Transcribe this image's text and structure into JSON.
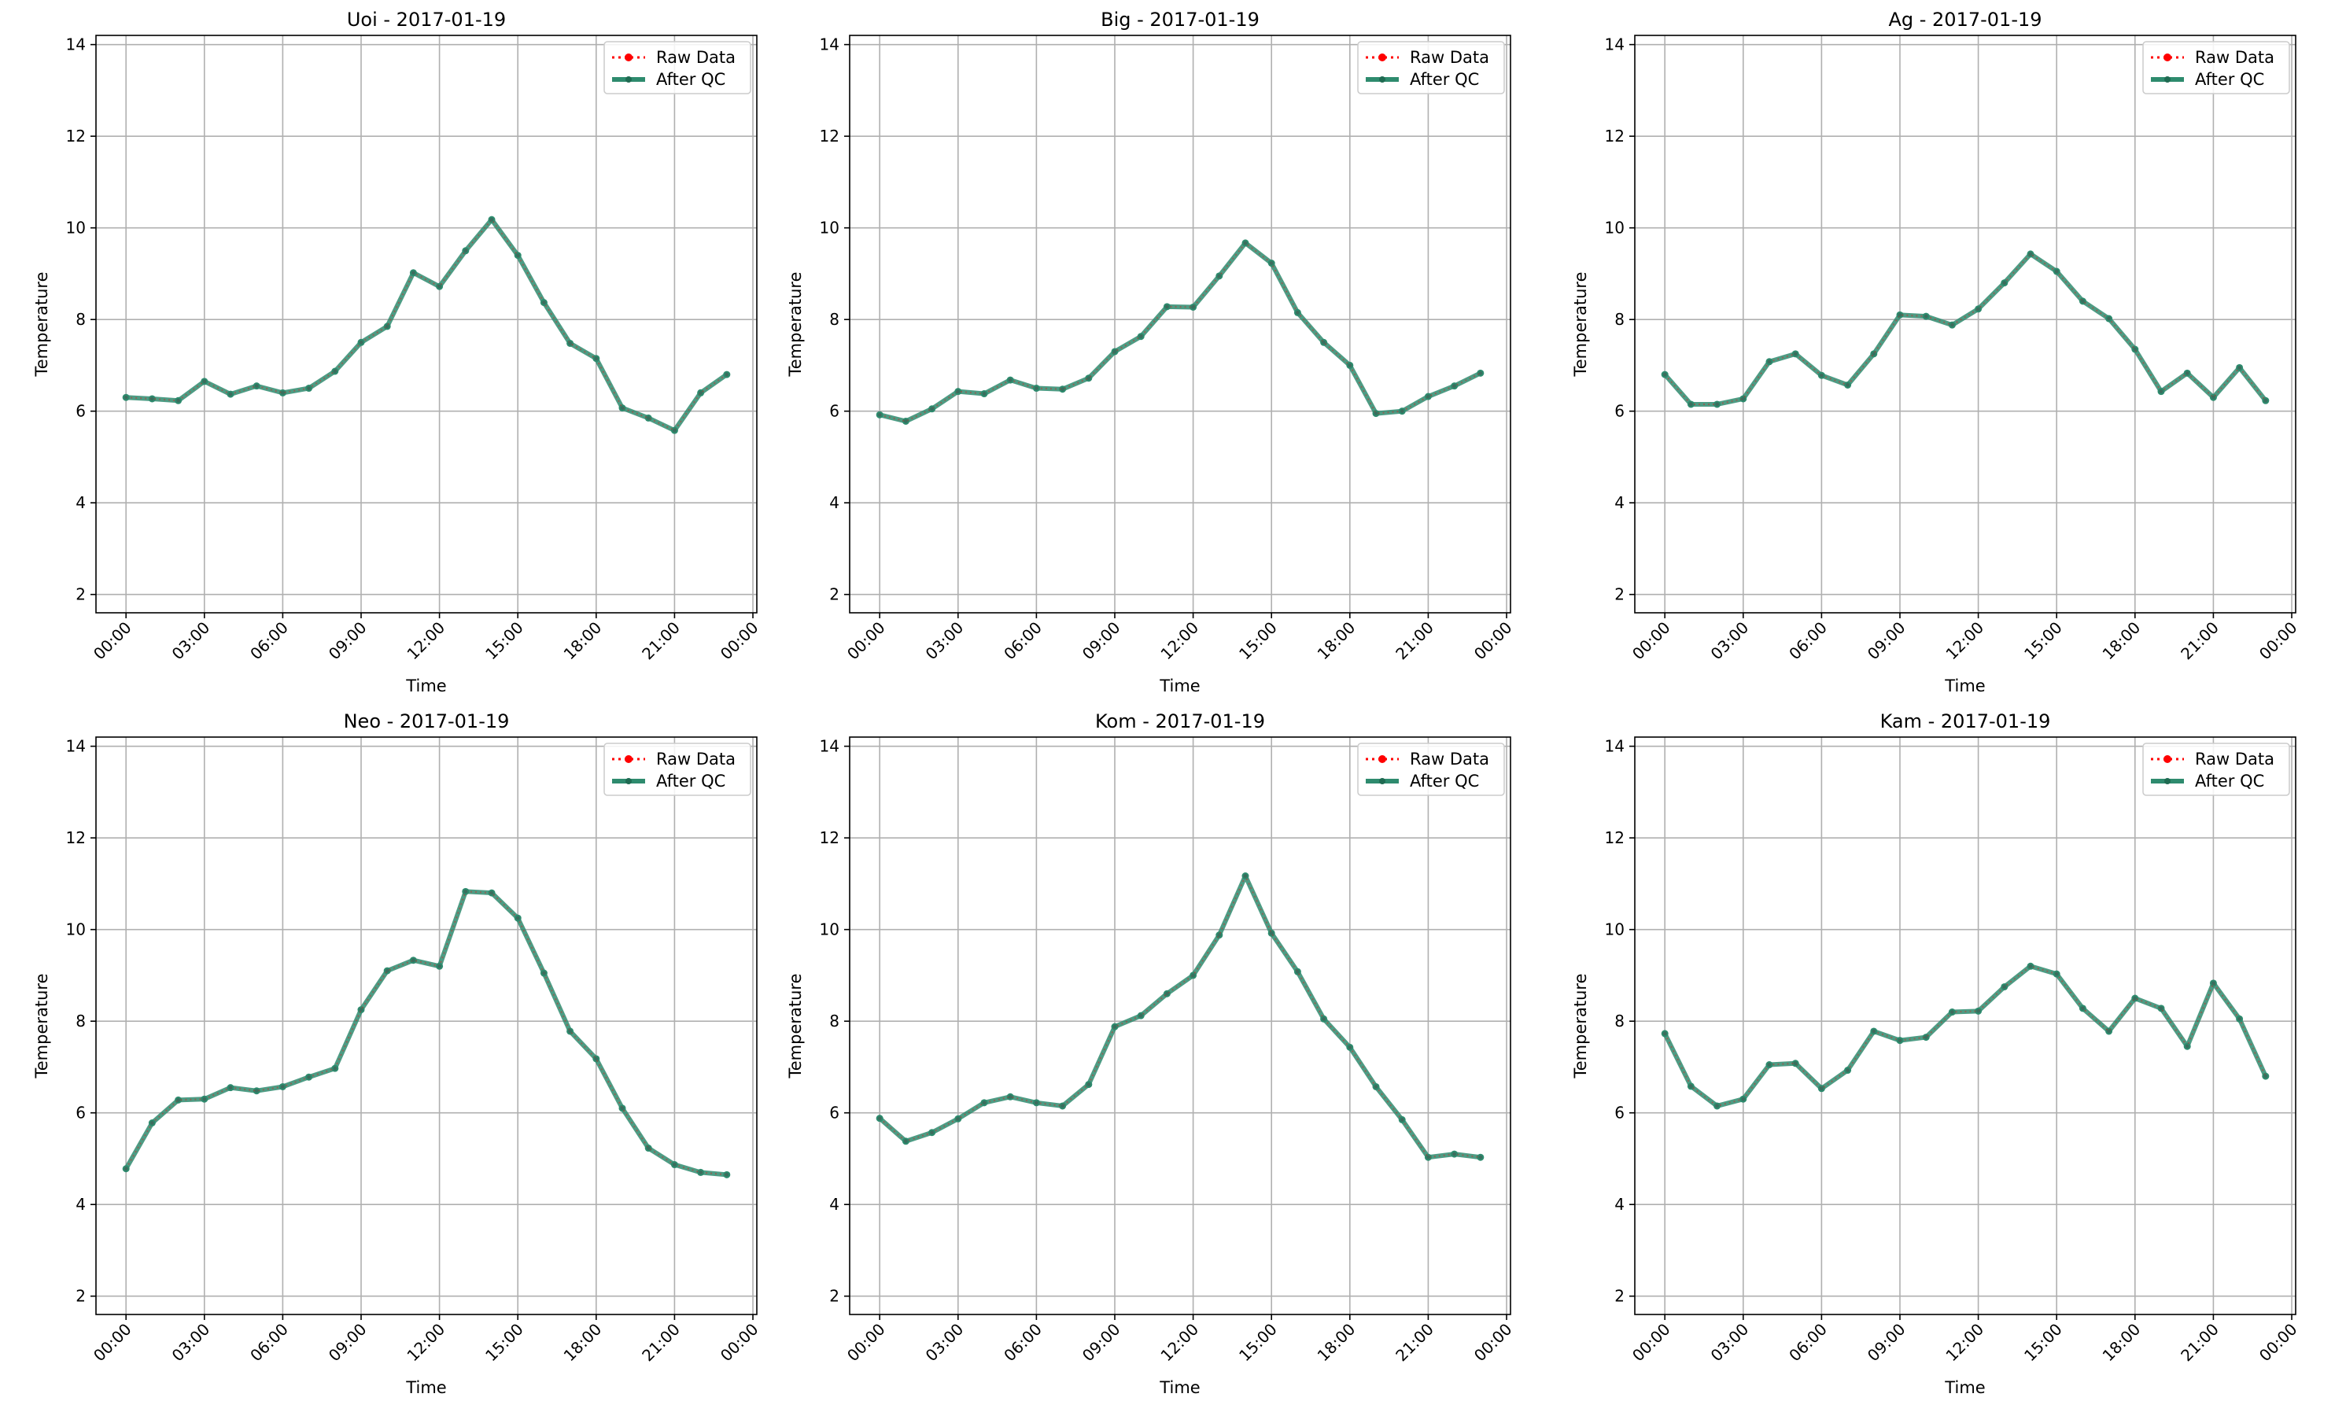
{
  "figure": {
    "background": "#ffffff"
  },
  "style": {
    "raw_color": "#ff0000",
    "qc_color": "#2e8b6e",
    "grid_color": "#b0b0b0"
  },
  "chart_data": [
    {
      "type": "line",
      "title": "Uoi - 2017-01-19",
      "xlabel": "Time",
      "ylabel": "Temperature",
      "x": [
        "00:00",
        "01:00",
        "02:00",
        "03:00",
        "04:00",
        "05:00",
        "06:00",
        "07:00",
        "08:00",
        "09:00",
        "10:00",
        "11:00",
        "12:00",
        "13:00",
        "14:00",
        "15:00",
        "16:00",
        "17:00",
        "18:00",
        "19:00",
        "20:00",
        "21:00",
        "22:00",
        "23:00"
      ],
      "xtick_labels": [
        "00:00",
        "03:00",
        "06:00",
        "09:00",
        "12:00",
        "15:00",
        "18:00",
        "21:00",
        "00:00"
      ],
      "ylim": [
        1.6,
        14.2
      ],
      "yticks": [
        2,
        4,
        6,
        8,
        10,
        12,
        14
      ],
      "grid": true,
      "legend": "top-right",
      "series": [
        {
          "name": "Raw Data",
          "values": [
            6.3,
            6.27,
            6.23,
            6.65,
            6.37,
            6.55,
            6.4,
            6.5,
            6.87,
            7.5,
            7.85,
            9.02,
            8.72,
            9.5,
            10.18,
            9.4,
            8.37,
            7.48,
            7.15,
            6.07,
            5.85,
            5.58,
            6.4,
            6.8
          ]
        },
        {
          "name": "After QC",
          "values": [
            6.3,
            6.27,
            6.23,
            6.65,
            6.37,
            6.55,
            6.4,
            6.5,
            6.87,
            7.5,
            7.85,
            9.02,
            8.72,
            9.5,
            10.18,
            9.4,
            8.37,
            7.48,
            7.15,
            6.07,
            5.85,
            5.58,
            6.4,
            6.8
          ]
        }
      ]
    },
    {
      "type": "line",
      "title": "Big - 2017-01-19",
      "xlabel": "Time",
      "ylabel": "Temperature",
      "x": [
        "00:00",
        "01:00",
        "02:00",
        "03:00",
        "04:00",
        "05:00",
        "06:00",
        "07:00",
        "08:00",
        "09:00",
        "10:00",
        "11:00",
        "12:00",
        "13:00",
        "14:00",
        "15:00",
        "16:00",
        "17:00",
        "18:00",
        "19:00",
        "20:00",
        "21:00",
        "22:00",
        "23:00"
      ],
      "xtick_labels": [
        "00:00",
        "03:00",
        "06:00",
        "09:00",
        "12:00",
        "15:00",
        "18:00",
        "21:00",
        "00:00"
      ],
      "ylim": [
        1.6,
        14.2
      ],
      "yticks": [
        2,
        4,
        6,
        8,
        10,
        12,
        14
      ],
      "grid": true,
      "legend": "top-right",
      "series": [
        {
          "name": "Raw Data",
          "values": [
            5.92,
            5.78,
            6.05,
            6.43,
            6.38,
            6.68,
            6.5,
            6.48,
            6.72,
            7.3,
            7.63,
            8.28,
            8.27,
            8.95,
            9.67,
            9.23,
            8.15,
            7.5,
            7.0,
            5.95,
            6.0,
            6.32,
            6.55,
            6.83
          ]
        },
        {
          "name": "After QC",
          "values": [
            5.92,
            5.78,
            6.05,
            6.43,
            6.38,
            6.68,
            6.5,
            6.48,
            6.72,
            7.3,
            7.63,
            8.28,
            8.27,
            8.95,
            9.67,
            9.23,
            8.15,
            7.5,
            7.0,
            5.95,
            6.0,
            6.32,
            6.55,
            6.83
          ]
        }
      ]
    },
    {
      "type": "line",
      "title": "Ag - 2017-01-19",
      "xlabel": "Time",
      "ylabel": "Temperature",
      "x": [
        "00:00",
        "01:00",
        "02:00",
        "03:00",
        "04:00",
        "05:00",
        "06:00",
        "07:00",
        "08:00",
        "09:00",
        "10:00",
        "11:00",
        "12:00",
        "13:00",
        "14:00",
        "15:00",
        "16:00",
        "17:00",
        "18:00",
        "19:00",
        "20:00",
        "21:00",
        "22:00",
        "23:00"
      ],
      "xtick_labels": [
        "00:00",
        "03:00",
        "06:00",
        "09:00",
        "12:00",
        "15:00",
        "18:00",
        "21:00",
        "00:00"
      ],
      "ylim": [
        1.6,
        14.2
      ],
      "yticks": [
        2,
        4,
        6,
        8,
        10,
        12,
        14
      ],
      "grid": true,
      "legend": "top-right",
      "series": [
        {
          "name": "Raw Data",
          "values": [
            6.8,
            6.15,
            6.15,
            6.27,
            7.08,
            7.25,
            6.78,
            6.57,
            7.25,
            8.1,
            8.07,
            7.88,
            8.23,
            8.8,
            9.43,
            9.05,
            8.4,
            8.02,
            7.35,
            6.43,
            6.83,
            6.3,
            6.95,
            6.23
          ]
        },
        {
          "name": "After QC",
          "values": [
            6.8,
            6.15,
            6.15,
            6.27,
            7.08,
            7.25,
            6.78,
            6.57,
            7.25,
            8.1,
            8.07,
            7.88,
            8.23,
            8.8,
            9.43,
            9.05,
            8.4,
            8.02,
            7.35,
            6.43,
            6.83,
            6.3,
            6.95,
            6.23
          ]
        }
      ]
    },
    {
      "type": "line",
      "title": "Neo - 2017-01-19",
      "xlabel": "Time",
      "ylabel": "Temperature",
      "x": [
        "00:00",
        "01:00",
        "02:00",
        "03:00",
        "04:00",
        "05:00",
        "06:00",
        "07:00",
        "08:00",
        "09:00",
        "10:00",
        "11:00",
        "12:00",
        "13:00",
        "14:00",
        "15:00",
        "16:00",
        "17:00",
        "18:00",
        "19:00",
        "20:00",
        "21:00",
        "22:00",
        "23:00"
      ],
      "xtick_labels": [
        "00:00",
        "03:00",
        "06:00",
        "09:00",
        "12:00",
        "15:00",
        "18:00",
        "21:00",
        "00:00"
      ],
      "ylim": [
        1.6,
        14.2
      ],
      "yticks": [
        2,
        4,
        6,
        8,
        10,
        12,
        14
      ],
      "grid": true,
      "legend": "top-right",
      "series": [
        {
          "name": "Raw Data",
          "values": [
            4.78,
            5.78,
            6.28,
            6.3,
            6.55,
            6.48,
            6.57,
            6.78,
            6.97,
            8.25,
            9.1,
            9.33,
            9.2,
            10.83,
            10.8,
            10.25,
            9.05,
            7.78,
            7.18,
            6.1,
            5.23,
            4.87,
            4.7,
            4.65
          ]
        },
        {
          "name": "After QC",
          "values": [
            4.78,
            5.78,
            6.28,
            6.3,
            6.55,
            6.48,
            6.57,
            6.78,
            6.97,
            8.25,
            9.1,
            9.33,
            9.2,
            10.83,
            10.8,
            10.25,
            9.05,
            7.78,
            7.18,
            6.1,
            5.23,
            4.87,
            4.7,
            4.65
          ]
        }
      ]
    },
    {
      "type": "line",
      "title": "Kom - 2017-01-19",
      "xlabel": "Time",
      "ylabel": "Temperature",
      "x": [
        "00:00",
        "01:00",
        "02:00",
        "03:00",
        "04:00",
        "05:00",
        "06:00",
        "07:00",
        "08:00",
        "09:00",
        "10:00",
        "11:00",
        "12:00",
        "13:00",
        "14:00",
        "15:00",
        "16:00",
        "17:00",
        "18:00",
        "19:00",
        "20:00",
        "21:00",
        "22:00",
        "23:00"
      ],
      "xtick_labels": [
        "00:00",
        "03:00",
        "06:00",
        "09:00",
        "12:00",
        "15:00",
        "18:00",
        "21:00",
        "00:00"
      ],
      "ylim": [
        1.6,
        14.2
      ],
      "yticks": [
        2,
        4,
        6,
        8,
        10,
        12,
        14
      ],
      "grid": true,
      "legend": "top-right",
      "series": [
        {
          "name": "Raw Data",
          "values": [
            5.88,
            5.38,
            5.57,
            5.87,
            6.22,
            6.35,
            6.22,
            6.15,
            6.62,
            7.88,
            8.12,
            8.6,
            9.0,
            9.88,
            11.17,
            9.92,
            9.08,
            8.05,
            7.43,
            6.57,
            5.85,
            5.03,
            5.1,
            5.03
          ]
        },
        {
          "name": "After QC",
          "values": [
            5.88,
            5.38,
            5.57,
            5.87,
            6.22,
            6.35,
            6.22,
            6.15,
            6.62,
            7.88,
            8.12,
            8.6,
            9.0,
            9.88,
            11.17,
            9.92,
            9.08,
            8.05,
            7.43,
            6.57,
            5.85,
            5.03,
            5.1,
            5.03
          ]
        }
      ]
    },
    {
      "type": "line",
      "title": "Kam - 2017-01-19",
      "xlabel": "Time",
      "ylabel": "Temperature",
      "x": [
        "00:00",
        "01:00",
        "02:00",
        "03:00",
        "04:00",
        "05:00",
        "06:00",
        "07:00",
        "08:00",
        "09:00",
        "10:00",
        "11:00",
        "12:00",
        "13:00",
        "14:00",
        "15:00",
        "16:00",
        "17:00",
        "18:00",
        "19:00",
        "20:00",
        "21:00",
        "22:00",
        "23:00"
      ],
      "xtick_labels": [
        "00:00",
        "03:00",
        "06:00",
        "09:00",
        "12:00",
        "15:00",
        "18:00",
        "21:00",
        "00:00"
      ],
      "ylim": [
        1.6,
        14.2
      ],
      "yticks": [
        2,
        4,
        6,
        8,
        10,
        12,
        14
      ],
      "grid": true,
      "legend": "top-right",
      "series": [
        {
          "name": "Raw Data",
          "values": [
            7.73,
            6.58,
            6.15,
            6.3,
            7.05,
            7.08,
            6.53,
            6.93,
            7.78,
            7.58,
            7.65,
            8.2,
            8.22,
            8.75,
            9.2,
            9.03,
            8.28,
            7.78,
            8.5,
            8.28,
            7.45,
            8.83,
            8.05,
            6.8
          ]
        },
        {
          "name": "After QC",
          "values": [
            7.73,
            6.58,
            6.15,
            6.3,
            7.05,
            7.08,
            6.53,
            6.93,
            7.78,
            7.58,
            7.65,
            8.2,
            8.22,
            8.75,
            9.2,
            9.03,
            8.28,
            7.78,
            8.5,
            8.28,
            7.45,
            8.83,
            8.05,
            6.8
          ]
        }
      ]
    }
  ]
}
